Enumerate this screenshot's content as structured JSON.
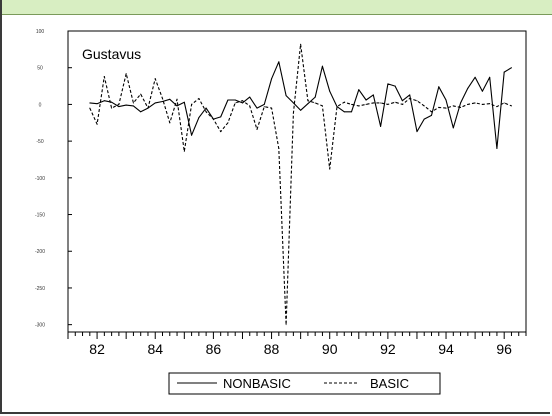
{
  "chart_data": {
    "type": "line",
    "title": "Gustavus",
    "xlabel": "",
    "ylabel": "",
    "xlim": [
      1981.0,
      1996.75
    ],
    "ylim": [
      -310,
      100
    ],
    "y_ticks": [
      100,
      50,
      0,
      -50,
      -100,
      -150,
      -200,
      -250,
      -300
    ],
    "y_tick_labels": [
      "100",
      "50",
      "0",
      "-50",
      "-100",
      "-150",
      "-200",
      "-250",
      "-300"
    ],
    "x_ticks": [
      82,
      84,
      86,
      88,
      90,
      92,
      94,
      96
    ],
    "x_tick_labels": [
      "82",
      "84",
      "86",
      "88",
      "90",
      "92",
      "94",
      "96"
    ],
    "x_start": 1981.75,
    "x_step": 0.25,
    "grid": false,
    "legend_position": "bottom",
    "series": [
      {
        "name": "NONBASIC",
        "style": "solid",
        "values": [
          2,
          1,
          5,
          3,
          -3,
          -1,
          -2,
          -10,
          -5,
          2,
          4,
          7,
          -2,
          3,
          -42,
          -18,
          -5,
          -20,
          -17,
          6,
          6,
          2,
          10,
          -5,
          0,
          35,
          58,
          12,
          2,
          -8,
          1,
          10,
          52,
          18,
          -3,
          -10,
          -10,
          20,
          6,
          13,
          -30,
          28,
          25,
          5,
          13,
          -37,
          -20,
          -15,
          24,
          6,
          -32,
          2,
          22,
          37,
          18,
          37,
          -60,
          44,
          50
        ],
        "color": "#000000"
      },
      {
        "name": "BASIC",
        "style": "dashed",
        "values": [
          -5,
          -27,
          38,
          -5,
          0,
          42,
          2,
          14,
          -5,
          35,
          8,
          -25,
          7,
          -64,
          0,
          8,
          -10,
          -20,
          -37,
          -25,
          2,
          5,
          -2,
          -34,
          -3,
          -5,
          -60,
          -300,
          -12,
          82,
          5,
          2,
          -2,
          -88,
          -3,
          3,
          0,
          -2,
          0,
          2,
          2,
          0,
          3,
          0,
          8,
          5,
          -2,
          -10,
          -4,
          -5,
          -2,
          -4,
          0,
          2,
          0,
          1,
          -3,
          2,
          -2
        ],
        "color": "#000000"
      }
    ]
  }
}
